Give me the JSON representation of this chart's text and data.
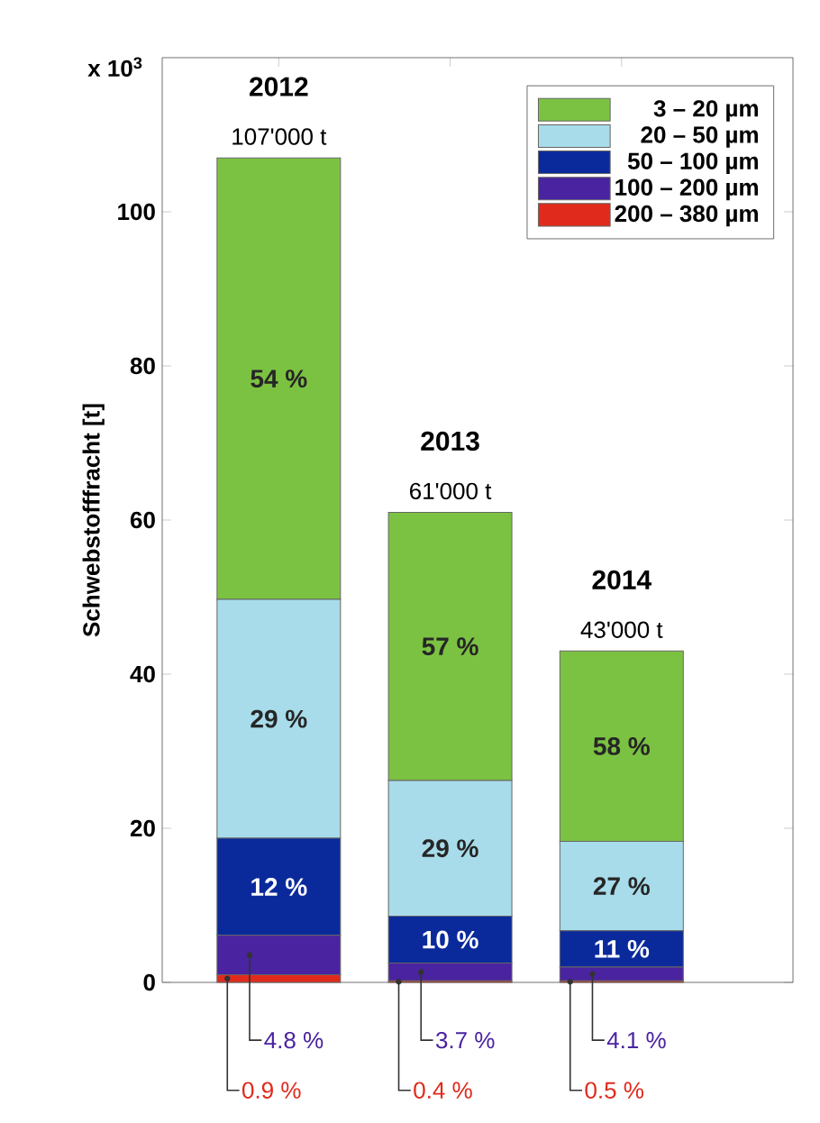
{
  "chart_data": {
    "type": "bar",
    "stacked": true,
    "ylabel": "Schwebstofffracht  [t]",
    "annotations": [
      "x 10$^{3}$",
      "54 %",
      "29 %",
      "12 %",
      "4.8 %",
      "0.9 %",
      "57 %",
      "29 %",
      "10 %",
      "3.7 %",
      "0.4 %",
      "58 %",
      "27 %",
      "11 %",
      "4.1 %",
      "0.5 %"
    ],
    "categories": [
      "2012",
      "2013",
      "2014"
    ],
    "totals": [
      "107'000 t",
      "61'000 t",
      "43'000 t"
    ],
    "series": [
      {
        "name": "200 – 380 µm",
        "color": "#e02a1c",
        "values": [
          1.0,
          0.2,
          0.2
        ]
      },
      {
        "name": "100 – 200 µm",
        "color": "#4a23a0",
        "values": [
          5.1,
          2.3,
          1.8
        ]
      },
      {
        "name": "50 – 100 µm",
        "color": "#0a2a9c",
        "values": [
          12.6,
          6.1,
          4.7
        ]
      },
      {
        "name": "20 – 50 µm",
        "color": "#a8dcea",
        "values": [
          31.0,
          17.6,
          11.6
        ]
      },
      {
        "name": "3 – 20 µm",
        "color": "#7cc242",
        "values": [
          57.3,
          34.8,
          24.7
        ]
      }
    ],
    "ylim": [
      0,
      120
    ],
    "yticks": [
      0,
      20,
      40,
      60,
      80,
      100
    ],
    "legend": "top right"
  }
}
